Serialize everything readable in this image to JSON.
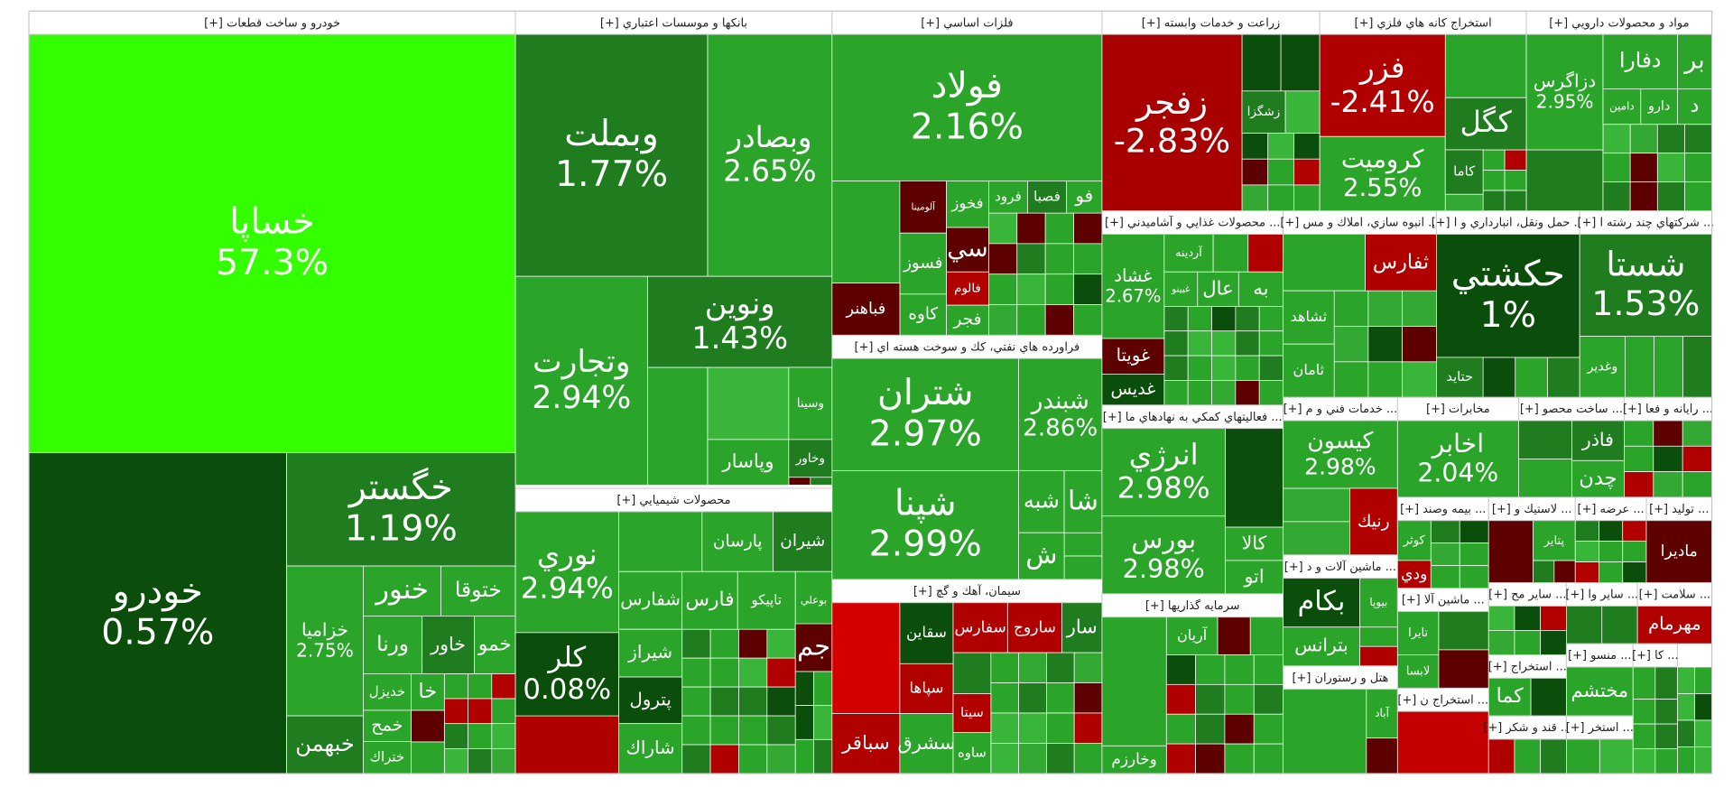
{
  "sectors": [
    {
      "title": "خودرو و ساخت قطعات [+]",
      "tiles": [
        {
          "label": "خساپا",
          "change": "57.3%"
        },
        {
          "label": "خودرو",
          "change": "0.57%"
        },
        {
          "label": "خگستر",
          "change": "1.19%"
        },
        {
          "label": "خزامیا",
          "change": "2.75%"
        },
        {
          "label": "خبهمن"
        },
        {
          "label": "خنور"
        },
        {
          "label": "ختوقا"
        },
        {
          "label": "ورنا"
        },
        {
          "label": "خاور"
        },
        {
          "label": "خمو"
        },
        {
          "label": "خديزل"
        },
        {
          "label": "خمح"
        },
        {
          "label": "ختراك"
        },
        {
          "label": "خا"
        }
      ]
    },
    {
      "title": "بانكها و موسسات اعتباري [+]",
      "tiles": [
        {
          "label": "وبملت",
          "change": "1.77%"
        },
        {
          "label": "وبصادر",
          "change": "2.65%"
        },
        {
          "label": "وتجارت",
          "change": "2.94%"
        },
        {
          "label": "ونوين",
          "change": "1.43%"
        },
        {
          "label": "وسينا"
        },
        {
          "label": "وپاسار"
        },
        {
          "label": "وخاور"
        }
      ]
    },
    {
      "title": "محصولات شيميايي [+]",
      "tiles": [
        {
          "label": "نوري",
          "change": "2.94%"
        },
        {
          "label": "كلر",
          "change": "0.08%"
        },
        {
          "label": "پارسان"
        },
        {
          "label": "شيران"
        },
        {
          "label": "شفارس"
        },
        {
          "label": "فارس"
        },
        {
          "label": "تاپيكو"
        },
        {
          "label": "بوعلي"
        },
        {
          "label": "شيراز"
        },
        {
          "label": "پترول"
        },
        {
          "label": "شاراك"
        },
        {
          "label": "جم"
        }
      ]
    },
    {
      "title": "فلزات اساسي [+]",
      "tiles": [
        {
          "label": "فولاد",
          "change": "2.16%"
        },
        {
          "label": "آلومينا"
        },
        {
          "label": "فخوز"
        },
        {
          "label": "فرود"
        },
        {
          "label": "فصبا"
        },
        {
          "label": "فو"
        },
        {
          "label": "فسوز"
        },
        {
          "label": "سي"
        },
        {
          "label": "فالوم"
        },
        {
          "label": "كاوه"
        },
        {
          "label": "فجر"
        },
        {
          "label": "فباهنر"
        }
      ]
    },
    {
      "title": "فراورده هاي نفتي، كك و سوخت هسته اي [+]",
      "tiles": [
        {
          "label": "شتران",
          "change": "2.97%"
        },
        {
          "label": "شبندر",
          "change": "2.86%"
        },
        {
          "label": "شپنا",
          "change": "2.99%"
        },
        {
          "label": "شبه"
        },
        {
          "label": "شا"
        },
        {
          "label": "ش"
        }
      ]
    },
    {
      "title": "سيمان، آهك و گچ [+]",
      "tiles": [
        {
          "label": "سباقر"
        },
        {
          "label": "سقاين"
        },
        {
          "label": "سپاها"
        },
        {
          "label": "سشرق"
        },
        {
          "label": "سفارس"
        },
        {
          "label": "ساروج"
        },
        {
          "label": "سار"
        },
        {
          "label": "سيتا"
        },
        {
          "label": "ساوه"
        }
      ]
    },
    {
      "title": "زراعت و خدمات وابسته [+]",
      "tiles": [
        {
          "label": "زفجر",
          "change": "-2.83%"
        },
        {
          "label": "زشگزا"
        }
      ]
    },
    {
      "title": "استخراج كانه هاي فلزي [+]",
      "tiles": [
        {
          "label": "فزر",
          "change": "-2.41%"
        },
        {
          "label": "كرومیت",
          "change": "2.55%"
        },
        {
          "label": "كگل"
        },
        {
          "label": "كاما"
        }
      ]
    },
    {
      "title": "مواد و محصولات دارويي [+]",
      "tiles": [
        {
          "label": "دزاگرس",
          "change": "2.95%"
        },
        {
          "label": "دفارا"
        },
        {
          "label": "بر"
        },
        {
          "label": "دامين"
        },
        {
          "label": "دارو"
        },
        {
          "label": "د"
        }
      ]
    },
    {
      "title": "... محصولات غذايي و آشاميدني [+]",
      "tiles": [
        {
          "label": "غشاد",
          "change": "2.67%"
        },
        {
          "label": "غويتا"
        },
        {
          "label": "غديس"
        },
        {
          "label": "آردينه"
        },
        {
          "label": "غبينو"
        },
        {
          "label": "عال"
        },
        {
          "label": "به"
        }
      ]
    },
    {
      "title": "... انبوه سازي، املاك و مس [+]",
      "tiles": [
        {
          "label": "ثفارس"
        },
        {
          "label": "ثشاهد"
        },
        {
          "label": "ثامان"
        }
      ]
    },
    {
      "title": "... حمل ونقل، انبارداري و ا [+]",
      "tiles": [
        {
          "label": "حكشتي",
          "change": "1%"
        },
        {
          "label": "حتايد"
        }
      ]
    },
    {
      "title": "... شركتهاي چند رشته ا [+]",
      "tiles": [
        {
          "label": "شستا",
          "change": "1.53%"
        },
        {
          "label": "وغدير"
        }
      ]
    },
    {
      "title": "... فعاليتهاي كمكي به نهادهاي ما [+]",
      "tiles": [
        {
          "label": "انرژي",
          "change": "2.98%"
        },
        {
          "label": "بورس",
          "change": "2.98%"
        },
        {
          "label": "كالا"
        },
        {
          "label": "اتو"
        }
      ]
    },
    {
      "title": "سرمايه گذاريها [+]",
      "tiles": [
        {
          "label": "وخارزم"
        },
        {
          "label": "آريان"
        }
      ]
    },
    {
      "title": "... خدمات فني و م [+]",
      "tiles": [
        {
          "label": "كيسون",
          "change": "2.98%"
        },
        {
          "label": "رنيك"
        }
      ]
    },
    {
      "title": "... ماشين آلات و د [+]",
      "tiles": [
        {
          "label": "بكام"
        },
        {
          "label": "بيوپا"
        },
        {
          "label": "بترانس"
        }
      ]
    },
    {
      "title": "هتل و رستوران [+]",
      "tiles": [
        {
          "label": "آباد"
        }
      ]
    },
    {
      "title": "مخابرات [+]",
      "tiles": [
        {
          "label": "اخابر",
          "change": "2.04%"
        }
      ]
    },
    {
      "title": "... ساخت محصو [+]",
      "tiles": [
        {
          "label": "فاذر"
        },
        {
          "label": "چدن"
        }
      ]
    },
    {
      "title": "... رايانه و فعا [+]",
      "tiles": []
    },
    {
      "title": "... بيمه وصند [+]",
      "tiles": [
        {
          "label": "كوثر"
        },
        {
          "label": "ودي"
        }
      ]
    },
    {
      "title": "... لاستيك و [+]",
      "tiles": [
        {
          "label": "پتاير"
        }
      ]
    },
    {
      "title": "... عرضه [+]",
      "tiles": []
    },
    {
      "title": "... توليد [+]",
      "tiles": [
        {
          "label": "ماديرا"
        }
      ]
    },
    {
      "title": "... ماشين آلا [+]",
      "tiles": [
        {
          "label": "تايرا"
        },
        {
          "label": "لابسا"
        }
      ]
    },
    {
      "title": "... استخراج ن [+]",
      "tiles": []
    },
    {
      "title": "... ساير مح [+]",
      "tiles": []
    },
    {
      "title": "... ساير وا [+]",
      "tiles": []
    },
    {
      "title": "... سلامت [+]",
      "tiles": [
        {
          "label": "مهرمام"
        }
      ]
    },
    {
      "title": "... استخراج [+]",
      "tiles": [
        {
          "label": "كما"
        }
      ]
    },
    {
      "title": "... منسو [+]",
      "tiles": [
        {
          "label": "مختشم"
        }
      ]
    },
    {
      "title": "... كا [+]",
      "tiles": []
    },
    {
      "title": "... قند و شكر [+]",
      "tiles": []
    },
    {
      "title": "... استخر [+]",
      "tiles": []
    }
  ]
}
